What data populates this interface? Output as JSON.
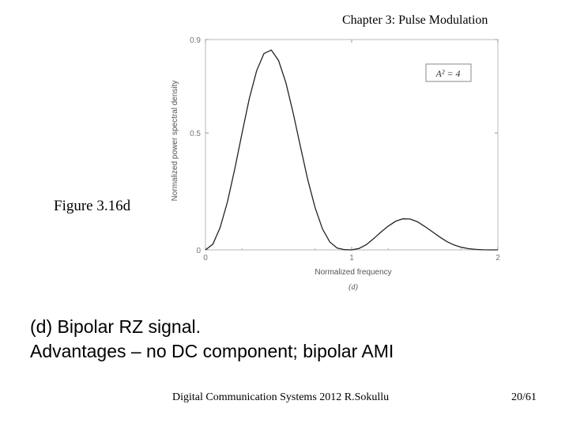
{
  "header": {
    "title": "Chapter 3: Pulse Modulation"
  },
  "figure": {
    "label": "Figure 3.16d",
    "panel": "(d)"
  },
  "caption": {
    "line1": "(d) Bipolar RZ signal.",
    "line2": "Advantages – no DC component; bipolar AMI"
  },
  "footer": {
    "text": "Digital Communication Systems 2012 R.Sokullu",
    "page": "20/61"
  },
  "chart_data": {
    "type": "line",
    "xlabel": "Normalized frequency",
    "ylabel": "Normalized power spectral density",
    "xlim": [
      0,
      2
    ],
    "ylim": [
      0,
      0.9
    ],
    "x_ticks": [
      "0",
      "1",
      "2"
    ],
    "y_ticks": [
      "0",
      "0.5",
      "0.9"
    ],
    "legend": "A² = 4",
    "legend_position": "top-right",
    "series": [
      {
        "x": [
          0,
          0.05,
          0.1,
          0.15,
          0.2,
          0.25,
          0.3,
          0.35,
          0.4,
          0.45,
          0.5,
          0.55,
          0.6,
          0.65,
          0.7,
          0.75,
          0.8,
          0.85,
          0.9,
          0.95,
          1.0,
          1.05,
          1.1,
          1.15,
          1.2,
          1.25,
          1.3,
          1.35,
          1.4,
          1.45,
          1.5,
          1.55,
          1.6,
          1.65,
          1.7,
          1.75,
          1.8,
          1.85,
          1.9,
          1.95,
          2.0
        ],
        "y": [
          0,
          0.024,
          0.095,
          0.205,
          0.345,
          0.5,
          0.648,
          0.767,
          0.84,
          0.855,
          0.81,
          0.715,
          0.585,
          0.44,
          0.299,
          0.18,
          0.09,
          0.034,
          0.008,
          0.001,
          0,
          0.006,
          0.022,
          0.048,
          0.076,
          0.102,
          0.122,
          0.133,
          0.132,
          0.12,
          0.1,
          0.078,
          0.056,
          0.036,
          0.021,
          0.011,
          0.005,
          0.002,
          0.0005,
          0.0001,
          0
        ]
      }
    ]
  }
}
